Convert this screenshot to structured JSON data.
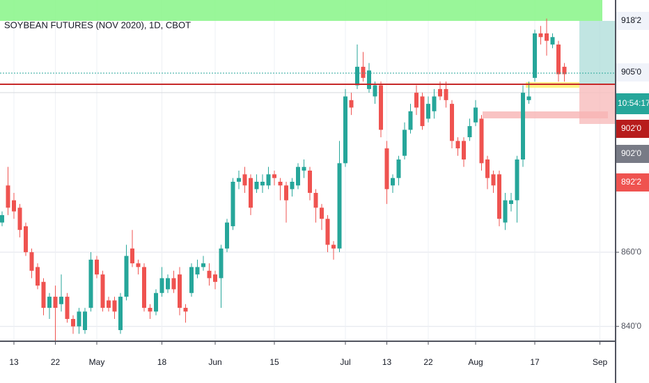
{
  "chart_data": {
    "type": "candlestick",
    "title": "SOYBEAN FUTURES (NOV 2020), 1D, CBOT",
    "categories": [
      null,
      null,
      "13",
      null,
      null,
      null,
      null,
      null,
      null,
      "22",
      null,
      null,
      null,
      null,
      null,
      null,
      "May",
      null,
      null,
      null,
      null,
      null,
      null,
      null,
      null,
      null,
      null,
      "18",
      null,
      null,
      null,
      null,
      null,
      null,
      null,
      null,
      "Jun",
      null,
      null,
      null,
      null,
      null,
      null,
      null,
      null,
      null,
      "15",
      null,
      null,
      null,
      null,
      null,
      null,
      null,
      null,
      null,
      null,
      null,
      "Jul",
      null,
      null,
      null,
      null,
      null,
      null,
      "13",
      null,
      null,
      null,
      null,
      null,
      null,
      "22",
      null,
      null,
      null,
      null,
      null,
      null,
      null,
      "Aug",
      null,
      null,
      null,
      null,
      null,
      null,
      null,
      null,
      null,
      "17",
      null,
      null,
      null,
      null,
      null,
      null,
      null,
      null,
      null,
      null,
      "Sep",
      null,
      null
    ],
    "open": [
      868,
      878,
      874,
      872,
      867,
      860,
      856,
      852,
      845,
      848,
      846,
      848,
      842,
      840,
      839,
      845,
      858,
      854,
      847,
      847,
      839,
      848,
      861,
      857,
      856,
      845,
      844,
      849,
      850,
      853,
      854,
      845,
      849,
      854,
      856,
      855,
      854,
      853,
      861,
      867,
      879,
      881,
      880,
      877,
      878,
      878,
      881,
      879,
      878,
      877,
      878,
      882,
      882,
      876,
      872,
      869,
      862,
      861,
      884,
      901,
      905,
      910,
      904,
      902,
      905,
      888,
      878,
      880,
      886,
      893,
      903,
      902,
      896,
      898,
      904,
      904,
      900,
      890,
      890,
      891,
      895,
      896,
      885,
      881,
      881,
      868,
      873,
      874,
      885,
      901,
      907,
      919,
      919,
      916,
      916,
      910,
      null,
      null,
      null,
      null,
      null,
      null,
      null,
      null
    ],
    "high": [
      871,
      883,
      876,
      873,
      868,
      861,
      857,
      853,
      849,
      851,
      854,
      849,
      843,
      845,
      845,
      860,
      859,
      855,
      848,
      848,
      849,
      862,
      866,
      858,
      857,
      846,
      850,
      856,
      854,
      855,
      856,
      846,
      857,
      858,
      859,
      857,
      855,
      862,
      869,
      880,
      882,
      883,
      881,
      881,
      881,
      883,
      882,
      880,
      879,
      880,
      884,
      885,
      883,
      877,
      873,
      870,
      863,
      890,
      904,
      903,
      916,
      914,
      911,
      906,
      906,
      890,
      881,
      886,
      895,
      900,
      905,
      903,
      902,
      904,
      906,
      906,
      901,
      891,
      891,
      896,
      901,
      897,
      886,
      882,
      882,
      876,
      876,
      886,
      905,
      906,
      920,
      921,
      923,
      919,
      917,
      911,
      null,
      null,
      null,
      null,
      null,
      null,
      null,
      null
    ],
    "low": [
      867,
      870,
      869,
      864,
      859,
      853,
      850,
      843,
      842,
      836,
      844,
      841,
      838,
      838,
      838,
      844,
      853,
      844,
      844,
      842,
      838,
      847,
      856,
      854,
      844,
      842,
      843,
      848,
      849,
      849,
      843,
      841,
      848,
      853,
      855,
      851,
      850,
      845,
      860,
      866,
      877,
      876,
      870,
      876,
      876,
      877,
      878,
      874,
      868,
      875,
      877,
      880,
      874,
      868,
      866,
      860,
      858,
      860,
      883,
      897,
      904,
      906,
      903,
      900,
      891,
      873,
      876,
      878,
      885,
      892,
      897,
      893,
      895,
      896,
      901,
      899,
      888,
      886,
      883,
      890,
      894,
      882,
      877,
      876,
      867,
      866,
      871,
      868,
      883,
      900,
      906,
      916,
      913,
      915,
      906,
      906,
      null,
      null,
      null,
      null,
      null,
      null,
      null,
      null
    ],
    "close": [
      870,
      872,
      871,
      866,
      860,
      855,
      851,
      845,
      848,
      845,
      848,
      842,
      840,
      844,
      844,
      858,
      854,
      845,
      845,
      844,
      848,
      859,
      857,
      856,
      845,
      844,
      849,
      853,
      853,
      850,
      845,
      844,
      856,
      856,
      857,
      853,
      852,
      861,
      868,
      879,
      880,
      878,
      872,
      879,
      879,
      881,
      880,
      878,
      874,
      879,
      883,
      883,
      876,
      872,
      869,
      862,
      861,
      884,
      902,
      899,
      910,
      907,
      909,
      905,
      893,
      877,
      880,
      885,
      893,
      898,
      899,
      894,
      900,
      902,
      902,
      901,
      890,
      888,
      885,
      894,
      899,
      884,
      880,
      878,
      869,
      874,
      874,
      885,
      903,
      902,
      919,
      918,
      917,
      918,
      908,
      908,
      null,
      null,
      null,
      null,
      null,
      null,
      null,
      null
    ],
    "up_color": "#26a69a",
    "down_color": "#ef5350",
    "ylim": [
      836,
      928
    ],
    "yticks": [
      {
        "value": 860,
        "label": "860'0"
      },
      {
        "value": 840,
        "label": "840'0"
      }
    ],
    "price_labels": [
      "918'2",
      "905'0",
      "902'0",
      "902'0",
      "892'2"
    ],
    "countdown": "10:54:17",
    "grid": true
  }
}
